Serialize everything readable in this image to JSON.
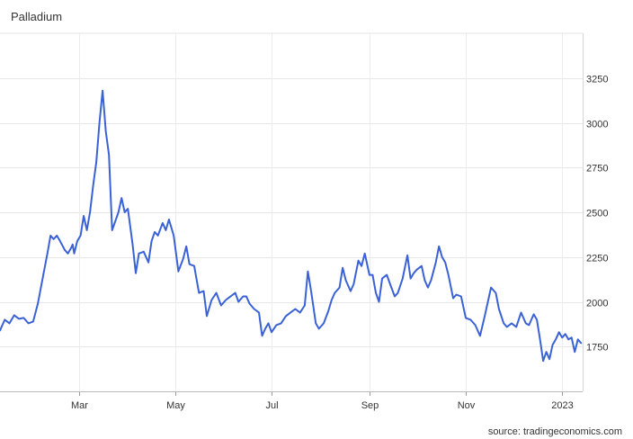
{
  "chart_data": {
    "type": "line",
    "title": "Palladium",
    "source": "source: tradingeconomics.com",
    "xlabel": "",
    "ylabel": "",
    "x_ticks": [
      "Mar",
      "May",
      "Jul",
      "Sep",
      "Nov",
      "2023"
    ],
    "x_tick_dates": [
      "2022-03-01",
      "2022-05-01",
      "2022-07-01",
      "2022-09-01",
      "2022-11-01",
      "2023-01-01"
    ],
    "y_ticks": [
      1750,
      2000,
      2250,
      2500,
      2750,
      3000,
      3250
    ],
    "xlim": [
      "2022-01-10",
      "2023-01-14"
    ],
    "ylim": [
      1500,
      3500
    ],
    "grid": true,
    "y_axis_position": "right",
    "line_color": "#3a62d6",
    "series": [
      {
        "values": [
          [
            "2022-01-10",
            1840
          ],
          [
            "2022-01-13",
            1900
          ],
          [
            "2022-01-16",
            1880
          ],
          [
            "2022-01-19",
            1925
          ],
          [
            "2022-01-22",
            1905
          ],
          [
            "2022-01-25",
            1910
          ],
          [
            "2022-01-28",
            1880
          ],
          [
            "2022-01-31",
            1890
          ],
          [
            "2022-02-03",
            1990
          ],
          [
            "2022-02-06",
            2130
          ],
          [
            "2022-02-09",
            2270
          ],
          [
            "2022-02-11",
            2370
          ],
          [
            "2022-02-13",
            2350
          ],
          [
            "2022-02-15",
            2370
          ],
          [
            "2022-02-17",
            2340
          ],
          [
            "2022-02-20",
            2290
          ],
          [
            "2022-02-22",
            2270
          ],
          [
            "2022-02-24",
            2300
          ],
          [
            "2022-02-25",
            2320
          ],
          [
            "2022-02-26",
            2270
          ],
          [
            "2022-02-28",
            2340
          ],
          [
            "2022-03-02",
            2370
          ],
          [
            "2022-03-04",
            2480
          ],
          [
            "2022-03-06",
            2400
          ],
          [
            "2022-03-08",
            2500
          ],
          [
            "2022-03-10",
            2650
          ],
          [
            "2022-03-12",
            2780
          ],
          [
            "2022-03-14",
            3000
          ],
          [
            "2022-03-16",
            3180
          ],
          [
            "2022-03-18",
            2950
          ],
          [
            "2022-03-20",
            2820
          ],
          [
            "2022-03-22",
            2400
          ],
          [
            "2022-03-24",
            2450
          ],
          [
            "2022-03-26",
            2500
          ],
          [
            "2022-03-28",
            2580
          ],
          [
            "2022-03-30",
            2500
          ],
          [
            "2022-04-01",
            2520
          ],
          [
            "2022-04-04",
            2320
          ],
          [
            "2022-04-06",
            2160
          ],
          [
            "2022-04-08",
            2270
          ],
          [
            "2022-04-11",
            2280
          ],
          [
            "2022-04-14",
            2220
          ],
          [
            "2022-04-16",
            2340
          ],
          [
            "2022-04-18",
            2390
          ],
          [
            "2022-04-20",
            2370
          ],
          [
            "2022-04-23",
            2440
          ],
          [
            "2022-04-25",
            2400
          ],
          [
            "2022-04-27",
            2460
          ],
          [
            "2022-04-30",
            2370
          ],
          [
            "2022-05-03",
            2170
          ],
          [
            "2022-05-06",
            2240
          ],
          [
            "2022-05-08",
            2310
          ],
          [
            "2022-05-10",
            2210
          ],
          [
            "2022-05-13",
            2200
          ],
          [
            "2022-05-16",
            2050
          ],
          [
            "2022-05-19",
            2060
          ],
          [
            "2022-05-21",
            1920
          ],
          [
            "2022-05-24",
            2010
          ],
          [
            "2022-05-27",
            2050
          ],
          [
            "2022-05-30",
            1980
          ],
          [
            "2022-06-02",
            2010
          ],
          [
            "2022-06-05",
            2030
          ],
          [
            "2022-06-08",
            2050
          ],
          [
            "2022-06-10",
            2000
          ],
          [
            "2022-06-13",
            2030
          ],
          [
            "2022-06-15",
            2030
          ],
          [
            "2022-06-17",
            1990
          ],
          [
            "2022-06-20",
            1960
          ],
          [
            "2022-06-23",
            1940
          ],
          [
            "2022-06-25",
            1810
          ],
          [
            "2022-06-27",
            1850
          ],
          [
            "2022-06-29",
            1880
          ],
          [
            "2022-07-01",
            1830
          ],
          [
            "2022-07-04",
            1870
          ],
          [
            "2022-07-07",
            1880
          ],
          [
            "2022-07-10",
            1920
          ],
          [
            "2022-07-13",
            1940
          ],
          [
            "2022-07-16",
            1960
          ],
          [
            "2022-07-19",
            1940
          ],
          [
            "2022-07-22",
            1980
          ],
          [
            "2022-07-24",
            2170
          ],
          [
            "2022-07-26",
            2060
          ],
          [
            "2022-07-29",
            1880
          ],
          [
            "2022-07-31",
            1850
          ],
          [
            "2022-08-03",
            1880
          ],
          [
            "2022-08-06",
            1950
          ],
          [
            "2022-08-08",
            2010
          ],
          [
            "2022-08-10",
            2050
          ],
          [
            "2022-08-13",
            2080
          ],
          [
            "2022-08-15",
            2190
          ],
          [
            "2022-08-17",
            2120
          ],
          [
            "2022-08-20",
            2060
          ],
          [
            "2022-08-22",
            2100
          ],
          [
            "2022-08-25",
            2230
          ],
          [
            "2022-08-27",
            2200
          ],
          [
            "2022-08-29",
            2270
          ],
          [
            "2022-09-01",
            2150
          ],
          [
            "2022-09-03",
            2150
          ],
          [
            "2022-09-05",
            2050
          ],
          [
            "2022-09-07",
            2000
          ],
          [
            "2022-09-09",
            2130
          ],
          [
            "2022-09-12",
            2150
          ],
          [
            "2022-09-14",
            2100
          ],
          [
            "2022-09-17",
            2030
          ],
          [
            "2022-09-19",
            2050
          ],
          [
            "2022-09-22",
            2130
          ],
          [
            "2022-09-25",
            2260
          ],
          [
            "2022-09-27",
            2130
          ],
          [
            "2022-09-29",
            2160
          ],
          [
            "2022-10-01",
            2180
          ],
          [
            "2022-10-04",
            2200
          ],
          [
            "2022-10-06",
            2120
          ],
          [
            "2022-10-08",
            2080
          ],
          [
            "2022-10-10",
            2120
          ],
          [
            "2022-10-13",
            2220
          ],
          [
            "2022-10-15",
            2310
          ],
          [
            "2022-10-17",
            2250
          ],
          [
            "2022-10-19",
            2220
          ],
          [
            "2022-10-21",
            2150
          ],
          [
            "2022-10-24",
            2020
          ],
          [
            "2022-10-26",
            2040
          ],
          [
            "2022-10-29",
            2030
          ],
          [
            "2022-11-01",
            1910
          ],
          [
            "2022-11-04",
            1900
          ],
          [
            "2022-11-07",
            1870
          ],
          [
            "2022-11-10",
            1810
          ],
          [
            "2022-11-13",
            1920
          ],
          [
            "2022-11-15",
            2000
          ],
          [
            "2022-11-17",
            2080
          ],
          [
            "2022-11-20",
            2050
          ],
          [
            "2022-11-22",
            1960
          ],
          [
            "2022-11-25",
            1880
          ],
          [
            "2022-11-27",
            1860
          ],
          [
            "2022-11-30",
            1880
          ],
          [
            "2022-12-03",
            1860
          ],
          [
            "2022-12-06",
            1940
          ],
          [
            "2022-12-09",
            1880
          ],
          [
            "2022-12-11",
            1870
          ],
          [
            "2022-12-14",
            1930
          ],
          [
            "2022-12-16",
            1900
          ],
          [
            "2022-12-18",
            1790
          ],
          [
            "2022-12-20",
            1670
          ],
          [
            "2022-12-22",
            1720
          ],
          [
            "2022-12-24",
            1680
          ],
          [
            "2022-12-26",
            1760
          ],
          [
            "2022-12-28",
            1790
          ],
          [
            "2022-12-30",
            1830
          ],
          [
            "2023-01-01",
            1800
          ],
          [
            "2023-01-03",
            1820
          ],
          [
            "2023-01-05",
            1790
          ],
          [
            "2023-01-07",
            1800
          ],
          [
            "2023-01-09",
            1720
          ],
          [
            "2023-01-11",
            1790
          ],
          [
            "2023-01-13",
            1770
          ]
        ]
      }
    ]
  }
}
